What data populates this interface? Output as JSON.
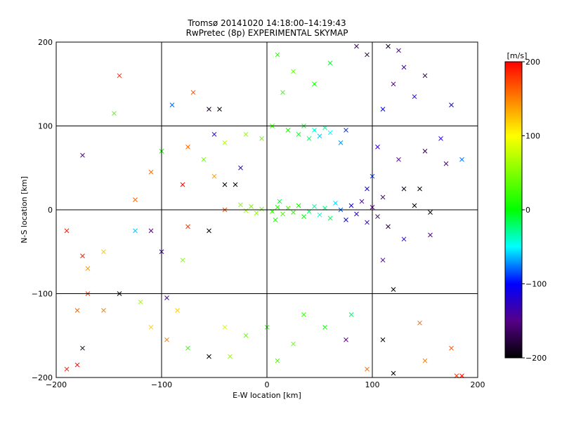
{
  "chart_data": {
    "type": "scatter",
    "title": "Tromsø 20141020 14:18:00–14:19:43",
    "subtitle": "RwPretec (8p) EXPERIMENTAL SKYMAP",
    "xlabel": "E-W location [km]",
    "ylabel": "N-S location [km]",
    "xlim": [
      -200,
      200
    ],
    "ylim": [
      -200,
      200
    ],
    "xticks": [
      -200,
      -100,
      0,
      100,
      200
    ],
    "yticks": [
      -200,
      -100,
      0,
      100,
      200
    ],
    "grid": true,
    "colorbar": {
      "label": "[m/s]",
      "min": -200,
      "max": 200,
      "ticks": [
        200,
        100,
        0,
        -100,
        -200
      ],
      "colormap": "rainbow"
    },
    "marker_types": [
      "dot",
      "cross"
    ],
    "points": [
      {
        "x": 5,
        "y": -2,
        "v": 20,
        "m": "cross"
      },
      {
        "x": 10,
        "y": 3,
        "v": 10,
        "m": "cross"
      },
      {
        "x": 15,
        "y": -5,
        "v": 30,
        "m": "cross"
      },
      {
        "x": 20,
        "y": 2,
        "v": 25,
        "m": "cross"
      },
      {
        "x": 25,
        "y": -3,
        "v": 15,
        "m": "cross"
      },
      {
        "x": 30,
        "y": 5,
        "v": 5,
        "m": "cross"
      },
      {
        "x": 35,
        "y": -8,
        "v": 0,
        "m": "cross"
      },
      {
        "x": -5,
        "y": 1,
        "v": 40,
        "m": "cross"
      },
      {
        "x": -10,
        "y": -4,
        "v": 55,
        "m": "cross"
      },
      {
        "x": -15,
        "y": 4,
        "v": 45,
        "m": "cross"
      },
      {
        "x": -20,
        "y": -1,
        "v": 60,
        "m": "cross"
      },
      {
        "x": -25,
        "y": 6,
        "v": 50,
        "m": "cross"
      },
      {
        "x": 8,
        "y": -12,
        "v": 10,
        "m": "cross"
      },
      {
        "x": 12,
        "y": 10,
        "v": -10,
        "m": "cross"
      },
      {
        "x": 40,
        "y": -2,
        "v": -20,
        "m": "cross"
      },
      {
        "x": 45,
        "y": 4,
        "v": -30,
        "m": "cross"
      },
      {
        "x": 50,
        "y": -6,
        "v": -40,
        "m": "cross"
      },
      {
        "x": 55,
        "y": 2,
        "v": -25,
        "m": "cross"
      },
      {
        "x": 60,
        "y": -10,
        "v": -15,
        "m": "cross"
      },
      {
        "x": 65,
        "y": 8,
        "v": -60,
        "m": "cross"
      },
      {
        "x": 70,
        "y": 0,
        "v": -80,
        "m": "cross"
      },
      {
        "x": 75,
        "y": -12,
        "v": -100,
        "m": "cross"
      },
      {
        "x": 80,
        "y": 5,
        "v": -110,
        "m": "cross"
      },
      {
        "x": 85,
        "y": -5,
        "v": -120,
        "m": "cross"
      },
      {
        "x": 90,
        "y": 10,
        "v": -140,
        "m": "cross"
      },
      {
        "x": 95,
        "y": -15,
        "v": -130,
        "m": "cross"
      },
      {
        "x": 100,
        "y": 3,
        "v": -150,
        "m": "cross"
      },
      {
        "x": 105,
        "y": -8,
        "v": -160,
        "m": "cross"
      },
      {
        "x": 110,
        "y": 15,
        "v": -170,
        "m": "cross"
      },
      {
        "x": 115,
        "y": -20,
        "v": -180,
        "m": "cross"
      },
      {
        "x": 130,
        "y": 25,
        "v": -190,
        "m": "cross"
      },
      {
        "x": 140,
        "y": 5,
        "v": -200,
        "m": "cross"
      },
      {
        "x": 155,
        "y": -3,
        "v": -195,
        "m": "cross"
      },
      {
        "x": 20,
        "y": 95,
        "v": 10,
        "m": "cross"
      },
      {
        "x": 30,
        "y": 90,
        "v": -5,
        "m": "cross"
      },
      {
        "x": 35,
        "y": 100,
        "v": -10,
        "m": "cross"
      },
      {
        "x": 40,
        "y": 85,
        "v": -20,
        "m": "cross"
      },
      {
        "x": 45,
        "y": 95,
        "v": -40,
        "m": "cross"
      },
      {
        "x": 50,
        "y": 88,
        "v": -60,
        "m": "cross"
      },
      {
        "x": 55,
        "y": 98,
        "v": -30,
        "m": "cross"
      },
      {
        "x": 60,
        "y": 92,
        "v": -50,
        "m": "cross"
      },
      {
        "x": 70,
        "y": 80,
        "v": -70,
        "m": "cross"
      },
      {
        "x": 75,
        "y": 95,
        "v": -90,
        "m": "cross"
      },
      {
        "x": 5,
        "y": 100,
        "v": 25,
        "m": "cross"
      },
      {
        "x": -5,
        "y": 85,
        "v": 40,
        "m": "cross"
      },
      {
        "x": -20,
        "y": 90,
        "v": 55,
        "m": "cross"
      },
      {
        "x": -40,
        "y": 80,
        "v": 70,
        "m": "cross"
      },
      {
        "x": 15,
        "y": 140,
        "v": 20,
        "m": "cross"
      },
      {
        "x": 25,
        "y": 165,
        "v": 35,
        "m": "cross"
      },
      {
        "x": 10,
        "y": 185,
        "v": 15,
        "m": "cross"
      },
      {
        "x": 45,
        "y": 150,
        "v": 5,
        "m": "cross"
      },
      {
        "x": 60,
        "y": 175,
        "v": -10,
        "m": "cross"
      },
      {
        "x": 85,
        "y": 195,
        "v": -170,
        "m": "cross"
      },
      {
        "x": 95,
        "y": 185,
        "v": -180,
        "m": "cross"
      },
      {
        "x": 115,
        "y": 195,
        "v": -190,
        "m": "cross"
      },
      {
        "x": 125,
        "y": 190,
        "v": -160,
        "m": "cross"
      },
      {
        "x": 130,
        "y": 170,
        "v": -140,
        "m": "cross"
      },
      {
        "x": 120,
        "y": 150,
        "v": -150,
        "m": "cross"
      },
      {
        "x": 140,
        "y": 135,
        "v": -120,
        "m": "cross"
      },
      {
        "x": 150,
        "y": 160,
        "v": -180,
        "m": "cross"
      },
      {
        "x": 110,
        "y": 120,
        "v": -100,
        "m": "cross"
      },
      {
        "x": 105,
        "y": 75,
        "v": -130,
        "m": "cross"
      },
      {
        "x": 125,
        "y": 60,
        "v": -155,
        "m": "cross"
      },
      {
        "x": 150,
        "y": 70,
        "v": -170,
        "m": "cross"
      },
      {
        "x": 170,
        "y": 55,
        "v": -160,
        "m": "cross"
      },
      {
        "x": 165,
        "y": 85,
        "v": -120,
        "m": "cross"
      },
      {
        "x": 175,
        "y": 125,
        "v": -110,
        "m": "cross"
      },
      {
        "x": 185,
        "y": 60,
        "v": -80,
        "m": "cross"
      },
      {
        "x": 100,
        "y": 40,
        "v": -90,
        "m": "cross"
      },
      {
        "x": 95,
        "y": 25,
        "v": -110,
        "m": "cross"
      },
      {
        "x": 145,
        "y": 25,
        "v": -200,
        "m": "cross"
      },
      {
        "x": 155,
        "y": -30,
        "v": -150,
        "m": "cross"
      },
      {
        "x": 130,
        "y": -35,
        "v": -120,
        "m": "cross"
      },
      {
        "x": 110,
        "y": -60,
        "v": -140,
        "m": "cross"
      },
      {
        "x": 120,
        "y": -95,
        "v": -200,
        "m": "cross"
      },
      {
        "x": 110,
        "y": -155,
        "v": -200,
        "m": "cross"
      },
      {
        "x": 120,
        "y": -195,
        "v": -200,
        "m": "cross"
      },
      {
        "x": 150,
        "y": -180,
        "v": 150,
        "m": "cross"
      },
      {
        "x": 175,
        "y": -165,
        "v": 170,
        "m": "cross"
      },
      {
        "x": 180,
        "y": -198,
        "v": 180,
        "m": "cross"
      },
      {
        "x": 185,
        "y": -198,
        "v": 195,
        "m": "cross"
      },
      {
        "x": 145,
        "y": -135,
        "v": 160,
        "m": "cross"
      },
      {
        "x": 95,
        "y": -190,
        "v": 160,
        "m": "cross"
      },
      {
        "x": 75,
        "y": -155,
        "v": -150,
        "m": "cross"
      },
      {
        "x": 80,
        "y": -125,
        "v": -20,
        "m": "cross"
      },
      {
        "x": 55,
        "y": -140,
        "v": 5,
        "m": "cross"
      },
      {
        "x": 35,
        "y": -125,
        "v": 20,
        "m": "cross"
      },
      {
        "x": 25,
        "y": -160,
        "v": 40,
        "m": "cross"
      },
      {
        "x": 10,
        "y": -180,
        "v": 30,
        "m": "cross"
      },
      {
        "x": 0,
        "y": -140,
        "v": 15,
        "m": "cross"
      },
      {
        "x": -20,
        "y": -150,
        "v": 40,
        "m": "cross"
      },
      {
        "x": -35,
        "y": -175,
        "v": 60,
        "m": "cross"
      },
      {
        "x": -40,
        "y": -140,
        "v": 80,
        "m": "cross"
      },
      {
        "x": -55,
        "y": -175,
        "v": -200,
        "m": "cross"
      },
      {
        "x": -75,
        "y": -165,
        "v": 20,
        "m": "cross"
      },
      {
        "x": -85,
        "y": -120,
        "v": 120,
        "m": "cross"
      },
      {
        "x": -95,
        "y": -155,
        "v": 150,
        "m": "cross"
      },
      {
        "x": -110,
        "y": -140,
        "v": 120,
        "m": "cross"
      },
      {
        "x": -95,
        "y": -105,
        "v": -140,
        "m": "cross"
      },
      {
        "x": -120,
        "y": -110,
        "v": 60,
        "m": "cross"
      },
      {
        "x": -140,
        "y": -100,
        "v": -200,
        "m": "cross"
      },
      {
        "x": -155,
        "y": -120,
        "v": 150,
        "m": "cross"
      },
      {
        "x": -170,
        "y": -100,
        "v": 180,
        "m": "cross"
      },
      {
        "x": -180,
        "y": -120,
        "v": 160,
        "m": "cross"
      },
      {
        "x": -175,
        "y": -165,
        "v": -190,
        "m": "cross"
      },
      {
        "x": -180,
        "y": -185,
        "v": 200,
        "m": "cross"
      },
      {
        "x": -190,
        "y": -190,
        "v": 190,
        "m": "cross"
      },
      {
        "x": -170,
        "y": -70,
        "v": 140,
        "m": "cross"
      },
      {
        "x": -155,
        "y": -50,
        "v": 120,
        "m": "cross"
      },
      {
        "x": -175,
        "y": -55,
        "v": 190,
        "m": "cross"
      },
      {
        "x": -190,
        "y": -25,
        "v": 190,
        "m": "cross"
      },
      {
        "x": -125,
        "y": -25,
        "v": -60,
        "m": "cross"
      },
      {
        "x": -110,
        "y": -25,
        "v": -150,
        "m": "cross"
      },
      {
        "x": -100,
        "y": -50,
        "v": -140,
        "m": "cross"
      },
      {
        "x": -80,
        "y": -60,
        "v": 50,
        "m": "cross"
      },
      {
        "x": -75,
        "y": -20,
        "v": 180,
        "m": "cross"
      },
      {
        "x": -55,
        "y": -25,
        "v": -200,
        "m": "cross"
      },
      {
        "x": -40,
        "y": 0,
        "v": 170,
        "m": "cross"
      },
      {
        "x": -30,
        "y": 30,
        "v": -200,
        "m": "cross"
      },
      {
        "x": -25,
        "y": 50,
        "v": -120,
        "m": "cross"
      },
      {
        "x": -50,
        "y": 40,
        "v": 140,
        "m": "cross"
      },
      {
        "x": -60,
        "y": 60,
        "v": 40,
        "m": "cross"
      },
      {
        "x": -75,
        "y": 75,
        "v": 160,
        "m": "cross"
      },
      {
        "x": -100,
        "y": 70,
        "v": 10,
        "m": "cross"
      },
      {
        "x": -110,
        "y": 45,
        "v": 160,
        "m": "cross"
      },
      {
        "x": -175,
        "y": 65,
        "v": -170,
        "m": "cross"
      },
      {
        "x": -145,
        "y": 115,
        "v": 30,
        "m": "cross"
      },
      {
        "x": -140,
        "y": 160,
        "v": 185,
        "m": "cross"
      },
      {
        "x": -90,
        "y": 125,
        "v": -80,
        "m": "cross"
      },
      {
        "x": -70,
        "y": 140,
        "v": 170,
        "m": "cross"
      },
      {
        "x": -55,
        "y": 120,
        "v": -190,
        "m": "cross"
      },
      {
        "x": -45,
        "y": 120,
        "v": -200,
        "m": "cross"
      },
      {
        "x": -80,
        "y": 30,
        "v": 200,
        "m": "cross"
      },
      {
        "x": -125,
        "y": 12,
        "v": 160,
        "m": "cross"
      },
      {
        "x": -50,
        "y": 90,
        "v": -120,
        "m": "cross"
      },
      {
        "x": -40,
        "y": 30,
        "v": -200,
        "m": "cross"
      }
    ]
  }
}
